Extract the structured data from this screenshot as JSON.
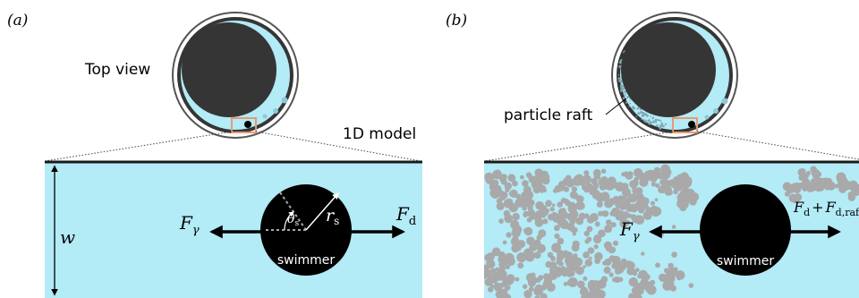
{
  "panel_a": {
    "label": "(a)",
    "top_view_label": "Top view",
    "model_label": "1D model",
    "width_symbol": "w",
    "force_left": {
      "main": "F",
      "sub": "γ"
    },
    "force_right": {
      "main": "F",
      "sub": "d"
    },
    "angle": {
      "main": "θ",
      "sub": "s"
    },
    "radius": {
      "main": "r",
      "sub": "s"
    },
    "swimmer_label": "swimmer"
  },
  "panel_b": {
    "label": "(b)",
    "raft_label": "particle raft",
    "force_left": {
      "main": "F",
      "sub": "γ"
    },
    "force_right": {
      "main1": "F",
      "sub1": "d",
      "plus": "+",
      "main2": "F",
      "sub2": "d,raft"
    },
    "swimmer_label": "swimmer"
  },
  "colors": {
    "water": "#b3ebf7",
    "dish_dark": "#353535",
    "highlight_box": "#e69a73",
    "particle": "#a9a9a9",
    "swimmer": "#000000"
  }
}
